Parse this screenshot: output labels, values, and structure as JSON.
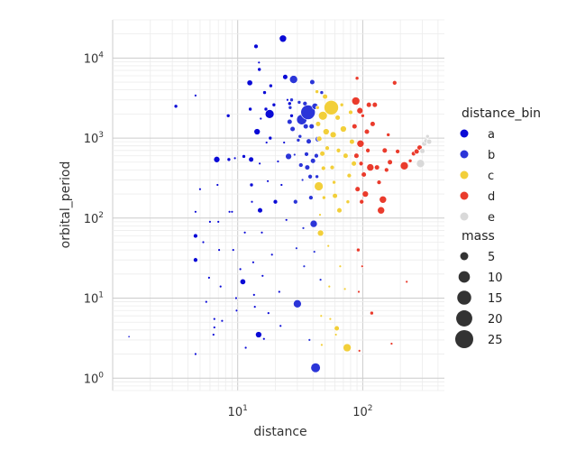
{
  "chart_data": {
    "type": "scatter",
    "xlabel": "distance",
    "ylabel": "orbital_period",
    "x_scale": "log",
    "y_scale": "log",
    "xlim": [
      1.0,
      450
    ],
    "ylim": [
      0.7,
      30000
    ],
    "x_ticks": [
      {
        "value": 10,
        "base": "10",
        "exp": "1"
      },
      {
        "value": 100,
        "base": "10",
        "exp": "2"
      }
    ],
    "y_ticks": [
      {
        "value": 1,
        "base": "10",
        "exp": "0"
      },
      {
        "value": 10,
        "base": "10",
        "exp": "1"
      },
      {
        "value": 100,
        "base": "10",
        "exp": "2"
      },
      {
        "value": 1000,
        "base": "10",
        "exp": "3"
      },
      {
        "value": 10000,
        "base": "10",
        "exp": "4"
      }
    ],
    "grid": true,
    "legend_position": "right",
    "hue_legend": {
      "title": "distance_bin",
      "items": [
        {
          "label": "a",
          "color": "#0a0ad6"
        },
        {
          "label": "b",
          "color": "#2b35d8"
        },
        {
          "label": "c",
          "color": "#f2cf3a"
        },
        {
          "label": "d",
          "color": "#ea3b2c"
        },
        {
          "label": "e",
          "color": "#d9d9d9"
        }
      ]
    },
    "size_legend": {
      "title": "mass",
      "items": [
        {
          "label": "5",
          "value": 5
        },
        {
          "label": "10",
          "value": 10
        },
        {
          "label": "15",
          "value": 15
        },
        {
          "label": "20",
          "value": 20
        },
        {
          "label": "25",
          "value": 25
        }
      ]
    },
    "series": [
      {
        "name": "a",
        "color": "#0a0ad6",
        "points": [
          [
            1.35,
            3.3,
            0.3
          ],
          [
            3.2,
            2500,
            1
          ],
          [
            4.6,
            3400,
            0.5
          ],
          [
            4.6,
            120,
            0.5
          ],
          [
            4.6,
            60,
            1.5
          ],
          [
            4.6,
            30,
            1.5
          ],
          [
            4.6,
            2.0,
            0.5
          ],
          [
            5.0,
            230,
            0.5
          ],
          [
            5.3,
            50,
            0.5
          ],
          [
            5.6,
            9,
            0.5
          ],
          [
            5.9,
            18,
            0.5
          ],
          [
            6.0,
            90,
            0.5
          ],
          [
            6.4,
            3.5,
            0.5
          ],
          [
            6.5,
            5.5,
            0.5
          ],
          [
            6.5,
            4.3,
            0.5
          ],
          [
            6.8,
            540,
            3
          ],
          [
            6.9,
            260,
            0.5
          ],
          [
            7.0,
            90,
            0.5
          ],
          [
            7.1,
            40,
            0.5
          ],
          [
            7.3,
            14,
            0.5
          ],
          [
            7.5,
            5.2,
            0.5
          ],
          [
            8.4,
            1900,
            1
          ],
          [
            8.5,
            540,
            1
          ],
          [
            8.6,
            120,
            0.5
          ],
          [
            9.0,
            120,
            0.5
          ],
          [
            9.2,
            40,
            0.5
          ],
          [
            9.5,
            560,
            0.5
          ],
          [
            9.7,
            10,
            0.5
          ],
          [
            9.8,
            7,
            0.5
          ],
          [
            10.5,
            23,
            0.5
          ],
          [
            11.0,
            16,
            2.5
          ],
          [
            11.2,
            590,
            1
          ],
          [
            11.4,
            66,
            0.5
          ],
          [
            11.6,
            2.4,
            0.5
          ],
          [
            12.5,
            4900,
            2.5
          ],
          [
            12.6,
            2300,
            1
          ],
          [
            12.8,
            540,
            2
          ],
          [
            12.9,
            260,
            1
          ],
          [
            13.0,
            160,
            0.5
          ],
          [
            13.3,
            28,
            0.5
          ],
          [
            13.5,
            11,
            0.5
          ],
          [
            13.7,
            7.8,
            0.5
          ],
          [
            14.0,
            14000,
            1.5
          ],
          [
            14.3,
            1200,
            3
          ],
          [
            14.7,
            3.5,
            3
          ],
          [
            14.8,
            8800,
            0.5
          ],
          [
            14.9,
            7200,
            1
          ],
          [
            15.0,
            480,
            0.5
          ],
          [
            15.1,
            125,
            2
          ],
          [
            15.3,
            1750,
            0.5
          ],
          [
            15.6,
            66,
            0.5
          ],
          [
            15.8,
            19,
            0.5
          ],
          [
            16.2,
            3.1,
            0.5
          ],
          [
            16.4,
            3700,
            1
          ],
          [
            16.8,
            2300,
            1
          ],
          [
            17.0,
            880,
            0.5
          ],
          [
            17.4,
            290,
            0.5
          ],
          [
            17.6,
            6.5,
            0.5
          ],
          [
            18.0,
            2000,
            6
          ],
          [
            18.2,
            1000,
            1
          ],
          [
            18.4,
            4500,
            1
          ],
          [
            18.8,
            35,
            0.5
          ],
          [
            19.5,
            2600,
            1
          ],
          [
            20.0,
            160,
            1.5
          ],
          [
            21.0,
            510,
            0.5
          ],
          [
            21.5,
            12,
            0.5
          ],
          [
            22.0,
            4.5,
            0.5
          ],
          [
            22.4,
            260,
            0.5
          ],
          [
            23.0,
            17500,
            4
          ],
          [
            23.5,
            880,
            0.5
          ],
          [
            24.0,
            5800,
            2
          ],
          [
            24.5,
            95,
            0.5
          ],
          [
            25.0,
            3000,
            0.5
          ],
          [
            26.0,
            2700,
            1
          ],
          [
            27.0,
            1900,
            1
          ]
        ]
      },
      {
        "name": "b",
        "color": "#2b35d8",
        "points": [
          [
            25.5,
            590,
            3
          ],
          [
            26.0,
            1600,
            2
          ],
          [
            26.3,
            2400,
            1
          ],
          [
            27.0,
            3000,
            1
          ],
          [
            27.5,
            1300,
            2
          ],
          [
            28.0,
            5400,
            5
          ],
          [
            28.5,
            620,
            0.5
          ],
          [
            29.0,
            160,
            1.5
          ],
          [
            29.5,
            42,
            0.5
          ],
          [
            30.0,
            8.5,
            5
          ],
          [
            30.5,
            940,
            1
          ],
          [
            31.0,
            2800,
            1
          ],
          [
            31.5,
            1050,
            1
          ],
          [
            32.0,
            460,
            1.5
          ],
          [
            32.5,
            1700,
            8
          ],
          [
            33.0,
            300,
            0.5
          ],
          [
            33.5,
            75,
            0.5
          ],
          [
            34.0,
            25,
            0.5
          ],
          [
            34.5,
            2700,
            1.5
          ],
          [
            35.0,
            1400,
            2
          ],
          [
            35.5,
            630,
            1.5
          ],
          [
            36.0,
            430,
            2
          ],
          [
            36.5,
            2100,
            16
          ],
          [
            37.0,
            910,
            2
          ],
          [
            37.5,
            3.0,
            0.5
          ],
          [
            38.0,
            330,
            1.5
          ],
          [
            38.5,
            180,
            1.5
          ],
          [
            39.0,
            1400,
            2
          ],
          [
            39.5,
            5000,
            2
          ],
          [
            40.0,
            520,
            2
          ],
          [
            40.5,
            85,
            4
          ],
          [
            41.0,
            38,
            0.5
          ],
          [
            41.5,
            2500,
            3
          ],
          [
            42.0,
            1.35,
            7
          ],
          [
            42.5,
            600,
            1.5
          ],
          [
            43.0,
            330,
            1
          ],
          [
            44.0,
            970,
            2.5
          ],
          [
            45.0,
            230,
            1
          ],
          [
            46.0,
            17,
            0.5
          ],
          [
            47.0,
            3700,
            1
          ]
        ]
      },
      {
        "name": "c",
        "color": "#f2cf3a",
        "points": [
          [
            43.0,
            3800,
            1
          ],
          [
            43.5,
            2400,
            1
          ],
          [
            44.0,
            1500,
            2
          ],
          [
            44.5,
            250,
            6
          ],
          [
            45.0,
            980,
            2
          ],
          [
            45.5,
            110,
            0.5
          ],
          [
            46.0,
            65,
            3
          ],
          [
            46.5,
            6,
            0.5
          ],
          [
            47.0,
            2.6,
            0.5
          ],
          [
            47.5,
            640,
            2
          ],
          [
            48.0,
            1900,
            6
          ],
          [
            48.5,
            420,
            1.5
          ],
          [
            49.0,
            180,
            1
          ],
          [
            50.0,
            3300,
            2
          ],
          [
            51.0,
            1200,
            3
          ],
          [
            52.0,
            750,
            1.5
          ],
          [
            53.0,
            45,
            0.5
          ],
          [
            54.0,
            14,
            0.5
          ],
          [
            55.0,
            5.5,
            0.5
          ],
          [
            56.0,
            2400,
            16
          ],
          [
            57.0,
            430,
            1.5
          ],
          [
            58.0,
            1100,
            3
          ],
          [
            59.0,
            280,
            1
          ],
          [
            60.0,
            190,
            2
          ],
          [
            61.0,
            3.5,
            0.5
          ],
          [
            62.0,
            4.2,
            2
          ],
          [
            63.0,
            1800,
            2
          ],
          [
            64.0,
            700,
            1.5
          ],
          [
            65.0,
            125,
            2
          ],
          [
            66.0,
            25,
            0.5
          ],
          [
            68.0,
            2600,
            1
          ],
          [
            70.0,
            1300,
            3
          ],
          [
            72.0,
            13,
            0.5
          ],
          [
            73.0,
            600,
            2
          ],
          [
            75.0,
            2.4,
            5
          ],
          [
            76.0,
            160,
            1
          ],
          [
            78.0,
            340,
            1.5
          ],
          [
            80.0,
            2100,
            1.5
          ],
          [
            82.0,
            900,
            2
          ],
          [
            85.0,
            480,
            2
          ]
        ]
      },
      {
        "name": "d",
        "color": "#ea3b2c",
        "points": [
          [
            86.0,
            1400,
            2
          ],
          [
            88.0,
            2900,
            5
          ],
          [
            89.0,
            600,
            2
          ],
          [
            90.0,
            5600,
            1
          ],
          [
            91.0,
            230,
            2
          ],
          [
            92.0,
            40,
            1
          ],
          [
            93.0,
            12,
            0.5
          ],
          [
            94.0,
            2.2,
            0.5
          ],
          [
            95.0,
            2200,
            3
          ],
          [
            96.0,
            850,
            4
          ],
          [
            97.0,
            480,
            1.5
          ],
          [
            98.0,
            160,
            1.5
          ],
          [
            99.0,
            25,
            0.5
          ],
          [
            100.0,
            1900,
            1
          ],
          [
            102.0,
            350,
            2
          ],
          [
            105.0,
            200,
            3
          ],
          [
            108.0,
            1200,
            2
          ],
          [
            110.0,
            700,
            1.5
          ],
          [
            112.0,
            2600,
            2
          ],
          [
            115.0,
            430,
            4
          ],
          [
            118.0,
            6.5,
            1
          ],
          [
            120.0,
            1500,
            2
          ],
          [
            125.0,
            2600,
            2
          ],
          [
            130.0,
            430,
            2
          ],
          [
            135.0,
            280,
            1.5
          ],
          [
            140.0,
            125,
            4
          ],
          [
            145.0,
            170,
            4
          ],
          [
            150.0,
            700,
            2
          ],
          [
            155.0,
            400,
            1.5
          ],
          [
            160.0,
            1100,
            1
          ],
          [
            165.0,
            500,
            2
          ],
          [
            170.0,
            2.7,
            0.5
          ],
          [
            180.0,
            4900,
            1.5
          ],
          [
            190.0,
            680,
            1.5
          ],
          [
            215.0,
            450,
            5
          ],
          [
            225.0,
            16,
            0.5
          ],
          [
            240.0,
            520,
            1
          ],
          [
            255.0,
            640,
            1.5
          ],
          [
            270.0,
            680,
            2
          ],
          [
            285.0,
            760,
            2
          ]
        ]
      },
      {
        "name": "e",
        "color": "#d9d9d9",
        "points": [
          [
            290.0,
            480,
            5
          ],
          [
            300.0,
            690,
            2
          ],
          [
            310.0,
            850,
            2
          ],
          [
            320.0,
            920,
            1.5
          ],
          [
            330.0,
            1050,
            1
          ],
          [
            340.0,
            900,
            2
          ]
        ]
      }
    ]
  }
}
